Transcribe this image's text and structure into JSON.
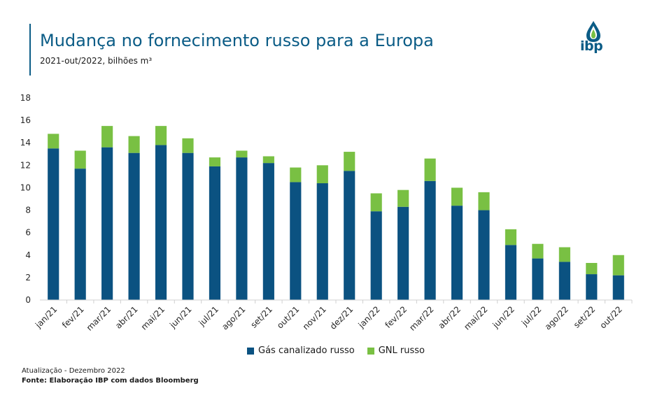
{
  "header": {
    "title": "Mudança no fornecimento russo para a Europa",
    "subtitle": "2021-out/2022, bilhões m³"
  },
  "logo": {
    "text": "ibp",
    "icon": "drop-flame-icon"
  },
  "colors": {
    "primary": "#0b5c86",
    "pipeline": "#0b5281",
    "lng": "#79c043",
    "axis": "#d0d0d0"
  },
  "chart_data": {
    "type": "bar",
    "stacked": true,
    "categories": [
      "jan/21",
      "fev/21",
      "mar/21",
      "abr/21",
      "mai/21",
      "jun/21",
      "jul/21",
      "ago/21",
      "set/21",
      "out/21",
      "nov/21",
      "dez/21",
      "jan/22",
      "fev/22",
      "mar/22",
      "abr/22",
      "mai/22",
      "jun/22",
      "jul/22",
      "ago/22",
      "set/22",
      "out/22"
    ],
    "series": [
      {
        "name": "Gás canalizado russo",
        "color": "#0b5281",
        "values": [
          13.5,
          11.7,
          13.6,
          13.1,
          13.8,
          13.1,
          11.9,
          12.7,
          12.2,
          10.5,
          10.4,
          11.5,
          7.9,
          8.3,
          10.6,
          8.4,
          8.0,
          4.9,
          3.7,
          3.4,
          2.3,
          2.2
        ]
      },
      {
        "name": "GNL russo",
        "color": "#79c043",
        "values": [
          1.3,
          1.6,
          1.9,
          1.5,
          1.7,
          1.3,
          0.8,
          0.6,
          0.6,
          1.3,
          1.6,
          1.7,
          1.6,
          1.5,
          2.0,
          1.6,
          1.6,
          1.4,
          1.3,
          1.3,
          1.0,
          1.8
        ]
      }
    ],
    "ylim": [
      0,
      18
    ],
    "yticks": [
      0,
      2,
      4,
      6,
      8,
      10,
      12,
      14,
      16,
      18
    ],
    "grid": false,
    "legend_position": "bottom"
  },
  "footer": {
    "update": "Atualização - Dezembro 2022",
    "source": "Fonte: Elaboração IBP com dados Bloomberg"
  }
}
